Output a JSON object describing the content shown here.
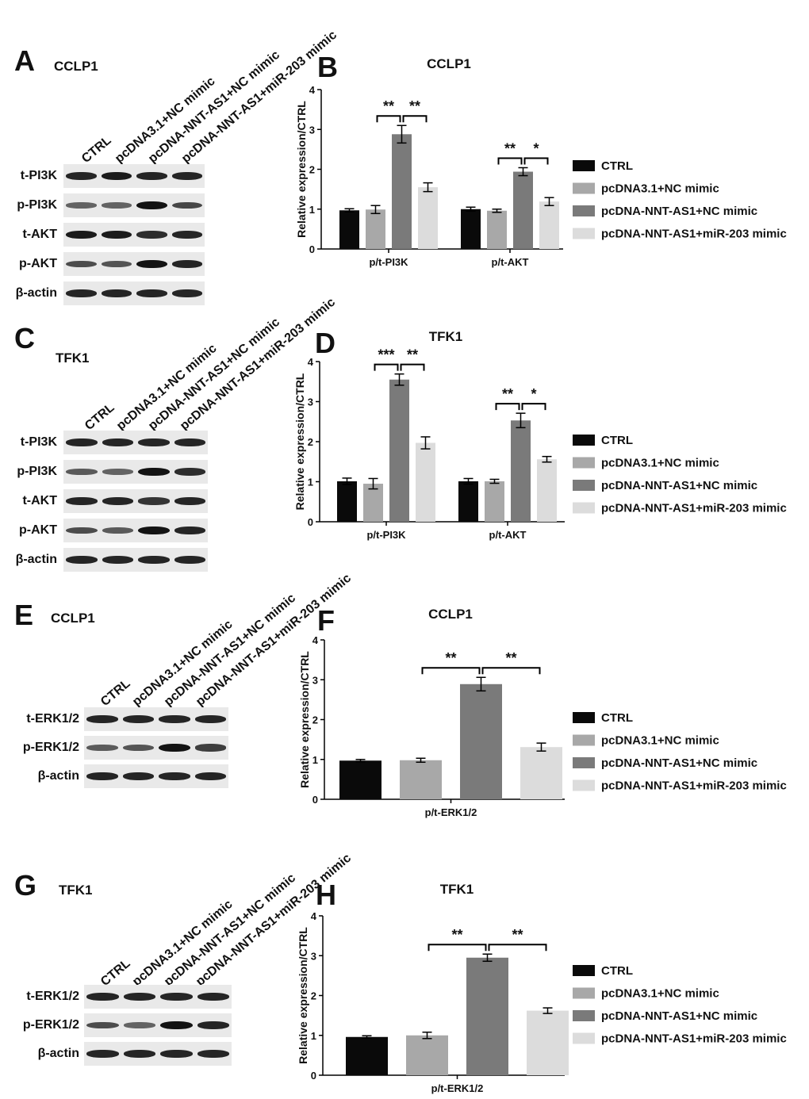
{
  "lanes": [
    "CTRL",
    "pcDNA3.1+NC mimic",
    "pcDNA-NNT-AS1+NC mimic",
    "pcDNA-NNT-AS1+miR-203 mimic"
  ],
  "colors": {
    "series": [
      "#0a0a0a",
      "#a8a8a8",
      "#7a7a7a",
      "#dcdcdc"
    ]
  },
  "blots": [
    {
      "letter": "A",
      "cell": "CCLP1",
      "rows": [
        {
          "label": "t-PI3K",
          "intensity": [
            0.85,
            0.9,
            0.85,
            0.85
          ]
        },
        {
          "label": "p-PI3K",
          "intensity": [
            0.45,
            0.45,
            0.95,
            0.65
          ]
        },
        {
          "label": "t-AKT",
          "intensity": [
            0.9,
            0.9,
            0.8,
            0.85
          ]
        },
        {
          "label": "p-AKT",
          "intensity": [
            0.6,
            0.55,
            0.95,
            0.85
          ]
        },
        {
          "label": "β-actin",
          "intensity": [
            0.85,
            0.85,
            0.85,
            0.85
          ]
        }
      ]
    },
    {
      "letter": "C",
      "cell": "TFK1",
      "rows": [
        {
          "label": "t-PI3K",
          "intensity": [
            0.85,
            0.85,
            0.85,
            0.85
          ]
        },
        {
          "label": "p-PI3K",
          "intensity": [
            0.5,
            0.45,
            0.95,
            0.8
          ]
        },
        {
          "label": "t-AKT",
          "intensity": [
            0.85,
            0.85,
            0.75,
            0.85
          ]
        },
        {
          "label": "p-AKT",
          "intensity": [
            0.6,
            0.5,
            0.95,
            0.85
          ]
        },
        {
          "label": "β-actin",
          "intensity": [
            0.85,
            0.85,
            0.85,
            0.85
          ]
        }
      ]
    },
    {
      "letter": "E",
      "cell": "CCLP1",
      "rows": [
        {
          "label": "t-ERK1/2",
          "intensity": [
            0.85,
            0.85,
            0.85,
            0.85
          ]
        },
        {
          "label": "p-ERK1/2",
          "intensity": [
            0.5,
            0.55,
            0.95,
            0.7
          ]
        },
        {
          "label": "β-actin",
          "intensity": [
            0.85,
            0.85,
            0.85,
            0.85
          ]
        }
      ]
    },
    {
      "letter": "G",
      "cell": "TFK1",
      "rows": [
        {
          "label": "t-ERK1/2",
          "intensity": [
            0.85,
            0.85,
            0.85,
            0.85
          ]
        },
        {
          "label": "p-ERK1/2",
          "intensity": [
            0.6,
            0.45,
            0.95,
            0.85
          ]
        },
        {
          "label": "β-actin",
          "intensity": [
            0.85,
            0.85,
            0.85,
            0.85
          ]
        }
      ]
    }
  ],
  "chart_data": [
    {
      "letter": "B",
      "type": "bar",
      "title": "CCLP1",
      "ylabel": "Relative expression/CTRL",
      "xlabel": "",
      "ylim": [
        0,
        4
      ],
      "yticks": [
        0,
        1,
        2,
        3,
        4
      ],
      "categories": [
        "p/t-PI3K",
        "p/t-AKT"
      ],
      "series": [
        {
          "name": "CTRL",
          "values": [
            0.97,
            1.0
          ],
          "errors": [
            0.04,
            0.05
          ]
        },
        {
          "name": "pcDNA3.1+NC mimic",
          "values": [
            0.99,
            0.96
          ],
          "errors": [
            0.1,
            0.04
          ]
        },
        {
          "name": "pcDNA-NNT-AS1+NC mimic",
          "values": [
            2.88,
            1.94
          ],
          "errors": [
            0.22,
            0.1
          ]
        },
        {
          "name": "pcDNA-NNT-AS1+miR-203 mimic",
          "values": [
            1.55,
            1.19
          ],
          "errors": [
            0.11,
            0.1
          ]
        }
      ],
      "significance": [
        {
          "category": 0,
          "from": 1,
          "to": 2,
          "label": "**"
        },
        {
          "category": 0,
          "from": 2,
          "to": 3,
          "label": "**"
        },
        {
          "category": 1,
          "from": 1,
          "to": 2,
          "label": "**"
        },
        {
          "category": 1,
          "from": 2,
          "to": 3,
          "label": "*"
        }
      ]
    },
    {
      "letter": "D",
      "type": "bar",
      "title": "TFK1",
      "ylabel": "Relative expression/CTRL",
      "xlabel": "",
      "ylim": [
        0,
        4
      ],
      "yticks": [
        0,
        1,
        2,
        3,
        4
      ],
      "categories": [
        "p/t-PI3K",
        "p/t-AKT"
      ],
      "series": [
        {
          "name": "CTRL",
          "values": [
            1.01,
            1.01
          ],
          "errors": [
            0.08,
            0.07
          ]
        },
        {
          "name": "pcDNA3.1+NC mimic",
          "values": [
            0.95,
            1.01
          ],
          "errors": [
            0.13,
            0.05
          ]
        },
        {
          "name": "pcDNA-NNT-AS1+NC mimic",
          "values": [
            3.55,
            2.53
          ],
          "errors": [
            0.14,
            0.18
          ]
        },
        {
          "name": "pcDNA-NNT-AS1+miR-203 mimic",
          "values": [
            1.97,
            1.56
          ],
          "errors": [
            0.15,
            0.07
          ]
        }
      ],
      "significance": [
        {
          "category": 0,
          "from": 1,
          "to": 2,
          "label": "***"
        },
        {
          "category": 0,
          "from": 2,
          "to": 3,
          "label": "**"
        },
        {
          "category": 1,
          "from": 1,
          "to": 2,
          "label": "**"
        },
        {
          "category": 1,
          "from": 2,
          "to": 3,
          "label": "*"
        }
      ]
    },
    {
      "letter": "F",
      "type": "bar",
      "title": "CCLP1",
      "ylabel": "Relative expression/CTRL",
      "xlabel": "",
      "ylim": [
        0,
        4
      ],
      "yticks": [
        0,
        1,
        2,
        3,
        4
      ],
      "categories": [
        "p/t-ERK1/2"
      ],
      "series": [
        {
          "name": "CTRL",
          "values": [
            0.97
          ],
          "errors": [
            0.03
          ]
        },
        {
          "name": "pcDNA3.1+NC mimic",
          "values": [
            0.98
          ],
          "errors": [
            0.05
          ]
        },
        {
          "name": "pcDNA-NNT-AS1+NC mimic",
          "values": [
            2.89
          ],
          "errors": [
            0.17
          ]
        },
        {
          "name": "pcDNA-NNT-AS1+miR-203 mimic",
          "values": [
            1.31
          ],
          "errors": [
            0.1
          ]
        }
      ],
      "significance": [
        {
          "category": 0,
          "from": 1,
          "to": 2,
          "label": "**"
        },
        {
          "category": 0,
          "from": 2,
          "to": 3,
          "label": "**"
        }
      ]
    },
    {
      "letter": "H",
      "type": "bar",
      "title": "TFK1",
      "ylabel": "Relative expression/CTRL",
      "xlabel": "",
      "ylim": [
        0,
        4
      ],
      "yticks": [
        0,
        1,
        2,
        3,
        4
      ],
      "categories": [
        "p/t-ERK1/2"
      ],
      "series": [
        {
          "name": "CTRL",
          "values": [
            0.96
          ],
          "errors": [
            0.03
          ]
        },
        {
          "name": "pcDNA3.1+NC mimic",
          "values": [
            1.0
          ],
          "errors": [
            0.08
          ]
        },
        {
          "name": "pcDNA-NNT-AS1+NC mimic",
          "values": [
            2.95
          ],
          "errors": [
            0.09
          ]
        },
        {
          "name": "pcDNA-NNT-AS1+miR-203 mimic",
          "values": [
            1.62
          ],
          "errors": [
            0.07
          ]
        }
      ],
      "significance": [
        {
          "category": 0,
          "from": 1,
          "to": 2,
          "label": "**"
        },
        {
          "category": 0,
          "from": 2,
          "to": 3,
          "label": "**"
        }
      ]
    }
  ]
}
